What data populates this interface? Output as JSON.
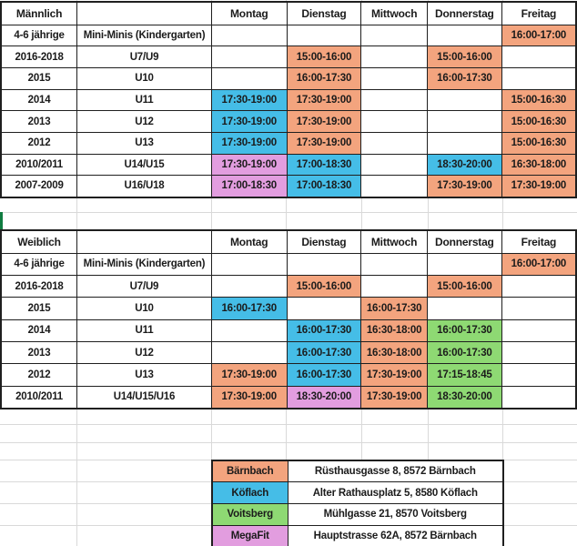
{
  "colors": {
    "baernbach": "#F3A47E",
    "koeflach": "#45BDE7",
    "voitsberg": "#8ED973",
    "megafit": "#E29DDF",
    "selection": "#107C41",
    "gridline": "#D9D9D9"
  },
  "tables": [
    {
      "header": {
        "group": "Männlich",
        "team": "",
        "days": [
          "Montag",
          "Dienstag",
          "Mittwoch",
          "Donnerstag",
          "Freitag"
        ]
      },
      "rows": [
        {
          "years": "4-6 jährige",
          "team": "Mini-Minis (Kindergarten)",
          "slots": [
            null,
            null,
            null,
            null,
            {
              "t": "16:00-17:00",
              "l": "baernbach"
            }
          ]
        },
        {
          "years": "2016-2018",
          "team": "U7/U9",
          "slots": [
            null,
            {
              "t": "15:00-16:00",
              "l": "baernbach"
            },
            null,
            {
              "t": "15:00-16:00",
              "l": "baernbach"
            },
            null
          ]
        },
        {
          "years": "2015",
          "team": "U10",
          "slots": [
            null,
            {
              "t": "16:00-17:30",
              "l": "baernbach"
            },
            null,
            {
              "t": "16:00-17:30",
              "l": "baernbach"
            },
            null
          ]
        },
        {
          "years": "2014",
          "team": "U11",
          "slots": [
            {
              "t": "17:30-19:00",
              "l": "koeflach"
            },
            {
              "t": "17:30-19:00",
              "l": "baernbach"
            },
            null,
            null,
            {
              "t": "15:00-16:30",
              "l": "baernbach"
            }
          ]
        },
        {
          "years": "2013",
          "team": "U12",
          "slots": [
            {
              "t": "17:30-19:00",
              "l": "koeflach"
            },
            {
              "t": "17:30-19:00",
              "l": "baernbach"
            },
            null,
            null,
            {
              "t": "15:00-16:30",
              "l": "baernbach"
            }
          ]
        },
        {
          "years": "2012",
          "team": "U13",
          "slots": [
            {
              "t": "17:30-19:00",
              "l": "koeflach"
            },
            {
              "t": "17:30-19:00",
              "l": "baernbach"
            },
            null,
            null,
            {
              "t": "15:00-16:30",
              "l": "baernbach"
            }
          ]
        },
        {
          "years": "2010/2011",
          "team": "U14/U15",
          "slots": [
            {
              "t": "17:30-19:00",
              "l": "megafit"
            },
            {
              "t": "17:00-18:30",
              "l": "koeflach"
            },
            null,
            {
              "t": "18:30-20:00",
              "l": "koeflach"
            },
            {
              "t": "16:30-18:00",
              "l": "baernbach"
            }
          ]
        },
        {
          "years": "2007-2009",
          "team": "U16/U18",
          "slots": [
            {
              "t": "17:00-18:30",
              "l": "megafit"
            },
            {
              "t": "17:00-18:30",
              "l": "koeflach"
            },
            null,
            {
              "t": "17:30-19:00",
              "l": "baernbach"
            },
            {
              "t": "17:30-19:00",
              "l": "baernbach"
            }
          ]
        }
      ]
    },
    {
      "header": {
        "group": "Weiblich",
        "team": "",
        "days": [
          "Montag",
          "Dienstag",
          "Mittwoch",
          "Donnerstag",
          "Freitag"
        ]
      },
      "rows": [
        {
          "years": "4-6 jährige",
          "team": "Mini-Minis (Kindergarten)",
          "slots": [
            null,
            null,
            null,
            null,
            {
              "t": "16:00-17:00",
              "l": "baernbach"
            }
          ]
        },
        {
          "years": "2016-2018",
          "team": "U7/U9",
          "slots": [
            null,
            {
              "t": "15:00-16:00",
              "l": "baernbach"
            },
            null,
            {
              "t": "15:00-16:00",
              "l": "baernbach"
            },
            null
          ]
        },
        {
          "years": "2015",
          "team": "U10",
          "slots": [
            {
              "t": "16:00-17:30",
              "l": "koeflach"
            },
            null,
            {
              "t": "16:00-17:30",
              "l": "baernbach"
            },
            null,
            null
          ]
        },
        {
          "years": "2014",
          "team": "U11",
          "slots": [
            null,
            {
              "t": "16:00-17:30",
              "l": "koeflach"
            },
            {
              "t": "16:30-18:00",
              "l": "baernbach"
            },
            {
              "t": "16:00-17:30",
              "l": "voitsberg"
            },
            null
          ]
        },
        {
          "years": "2013",
          "team": "U12",
          "slots": [
            null,
            {
              "t": "16:00-17:30",
              "l": "koeflach"
            },
            {
              "t": "16:30-18:00",
              "l": "baernbach"
            },
            {
              "t": "16:00-17:30",
              "l": "voitsberg"
            },
            null
          ]
        },
        {
          "years": "2012",
          "team": "U13",
          "slots": [
            {
              "t": "17:30-19:00",
              "l": "baernbach"
            },
            {
              "t": "16:00-17:30",
              "l": "koeflach"
            },
            {
              "t": "17:30-19:00",
              "l": "baernbach"
            },
            {
              "t": "17:15-18:45",
              "l": "voitsberg"
            },
            null
          ]
        },
        {
          "years": "2010/2011",
          "team": "U14/U15/U16",
          "slots": [
            {
              "t": "17:30-19:00",
              "l": "baernbach"
            },
            {
              "t": "18:30-20:00",
              "l": "megafit"
            },
            {
              "t": "17:30-19:00",
              "l": "baernbach"
            },
            {
              "t": "18:30-20:00",
              "l": "voitsberg"
            },
            null
          ]
        }
      ]
    }
  ],
  "legend": {
    "rows": [
      {
        "name": "Bärnbach",
        "loc": "baernbach",
        "address": "Rüsthausgasse 8, 8572 Bärnbach"
      },
      {
        "name": "Köflach",
        "loc": "koeflach",
        "address": "Alter Rathausplatz 5, 8580 Köflach"
      },
      {
        "name": "Voitsberg",
        "loc": "voitsberg",
        "address": "Mühlgasse 21, 8570 Voitsberg"
      },
      {
        "name": "MegaFit",
        "loc": "megafit",
        "address": "Hauptstrasse 62A, 8572 Bärnbach"
      }
    ]
  }
}
